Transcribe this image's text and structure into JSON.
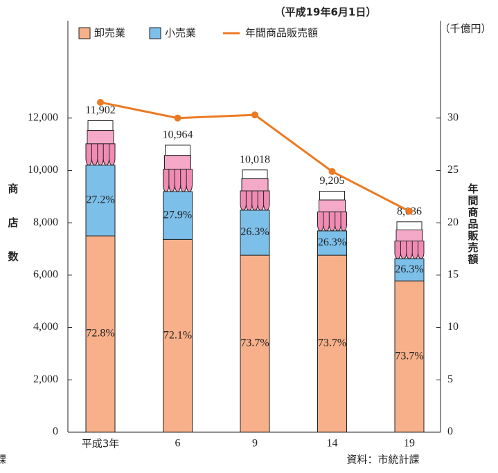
{
  "chart_data": {
    "type": "bar-line",
    "note": "（平成19年6月1日）",
    "source": "資料：市統計課",
    "cut_text": "課",
    "y_label": "商店数",
    "y2_label": "年間商品販売額",
    "y2_unit": "（千億円）",
    "categories": [
      "平成3年",
      "6",
      "9",
      "14",
      "19"
    ],
    "totals": [
      11902,
      10964,
      10018,
      9205,
      8036
    ],
    "total_labels": [
      "11,902",
      "10,964",
      "10,018",
      "9,205",
      "8,036"
    ],
    "series": [
      {
        "name": "卸売業",
        "color": "#f7b08a",
        "values": [
          7500,
          7360,
          6760,
          6760,
          5780
        ],
        "share_labels": [
          "72.8%",
          "72.1%",
          "73.7%",
          "73.7%",
          "73.7%"
        ]
      },
      {
        "name": "小売業",
        "color": "#7cbfe9",
        "values": [
          2700,
          1830,
          1720,
          930,
          850
        ],
        "share_labels": [
          "27.2%",
          "27.9%",
          "26.3%",
          "26.3%",
          "26.3%"
        ]
      },
      {
        "name": "年間商品販売額",
        "color": "#ec7a23",
        "axis": "y2",
        "values": [
          31.5,
          30.0,
          30.3,
          24.9,
          21.1
        ]
      }
    ],
    "ylim": [
      0,
      14000
    ],
    "yticks": [
      0,
      {
        "value": 2000,
        "label": "2,000"
      },
      {
        "value": 4000,
        "label": "4,000"
      },
      {
        "value": 6000,
        "label": "6,000"
      },
      {
        "value": 8000,
        "label": "8,000"
      },
      {
        "value": 10000,
        "label": "10,000"
      },
      {
        "value": 12000,
        "label": "12,000"
      }
    ],
    "y2lim": [
      0,
      35
    ],
    "y2ticks": [
      0,
      5,
      10,
      15,
      20,
      25,
      30
    ]
  }
}
